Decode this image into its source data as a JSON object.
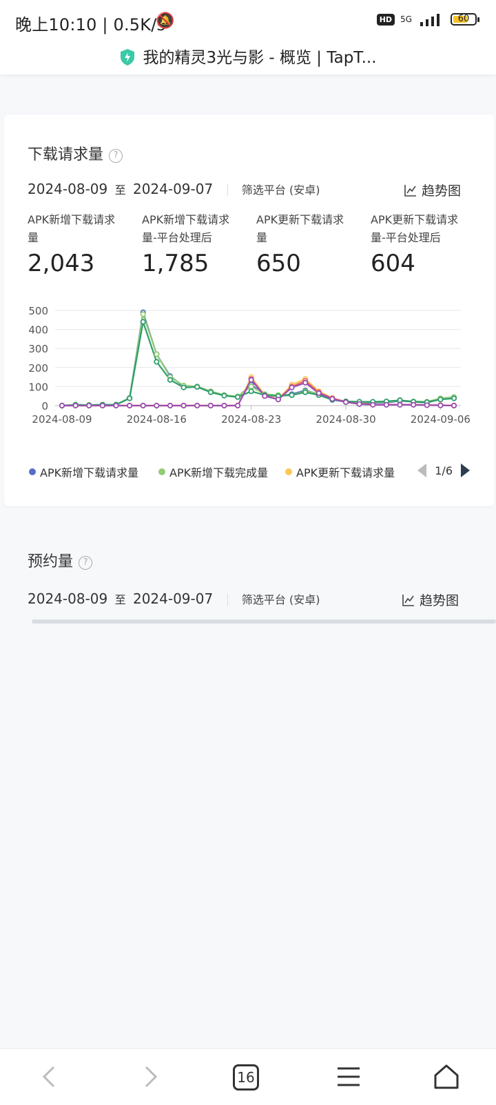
{
  "status_bar": {
    "time_speed": "晚上10:10 | 0.5K/s",
    "hd": "HD",
    "net": "5G",
    "battery": "60"
  },
  "page_title": "我的精灵3光与影 - 概览 | TapT...",
  "download_card": {
    "title": "下载请求量",
    "date_start": "2024-08-09",
    "date_to": "至",
    "date_end": "2024-09-07",
    "filter": "筛选平台 (安卓)",
    "trend_label": "趋势图",
    "metrics": [
      {
        "label_line1": "APK新增下载请求",
        "label_line2": "量",
        "value": "2,043"
      },
      {
        "label_line1": "APK新增下载请求",
        "label_line2": "量-平台处理后",
        "value": "1,785"
      },
      {
        "label_line1": "APK更新下载请求",
        "label_line2": "量",
        "value": "650"
      },
      {
        "label_line1": "APK更新下载请求",
        "label_line2": "量-平台处理后",
        "value": "604"
      }
    ],
    "legend": [
      {
        "name": "APK新增下载请求量",
        "color": "#5470c6"
      },
      {
        "name": "APK新增下载完成量",
        "color": "#91cc75"
      },
      {
        "name": "APK更新下载请求量",
        "color": "#fac858"
      }
    ],
    "pager": "1/6"
  },
  "chart_data": {
    "type": "line",
    "x": [
      "2024-08-09",
      "2024-08-10",
      "2024-08-11",
      "2024-08-12",
      "2024-08-13",
      "2024-08-14",
      "2024-08-15",
      "2024-08-16",
      "2024-08-17",
      "2024-08-18",
      "2024-08-19",
      "2024-08-20",
      "2024-08-21",
      "2024-08-22",
      "2024-08-23",
      "2024-08-24",
      "2024-08-25",
      "2024-08-26",
      "2024-08-27",
      "2024-08-28",
      "2024-08-29",
      "2024-08-30",
      "2024-08-31",
      "2024-09-01",
      "2024-09-02",
      "2024-09-03",
      "2024-09-04",
      "2024-09-05",
      "2024-09-06",
      "2024-09-07"
    ],
    "x_tick_labels": [
      "2024-08-09",
      "2024-08-16",
      "2024-08-23",
      "2024-08-30",
      "2024-09-06"
    ],
    "y_ticks": [
      0,
      100,
      200,
      300,
      400,
      500
    ],
    "ylim": [
      0,
      500
    ],
    "series": [
      {
        "name": "APK新增下载请求量",
        "color": "#5470c6",
        "values": [
          0,
          5,
          3,
          5,
          5,
          40,
          490,
          270,
          155,
          100,
          100,
          75,
          55,
          45,
          110,
          55,
          50,
          60,
          80,
          60,
          30,
          20,
          15,
          15,
          15,
          25,
          20,
          15,
          35,
          40
        ]
      },
      {
        "name": "APK新增下载完成量",
        "color": "#91cc75",
        "values": [
          0,
          5,
          3,
          5,
          5,
          40,
          480,
          270,
          150,
          105,
          100,
          75,
          55,
          48,
          100,
          60,
          55,
          55,
          75,
          65,
          35,
          22,
          18,
          18,
          18,
          28,
          22,
          20,
          38,
          45
        ]
      },
      {
        "name": "APK更新下载请求量",
        "color": "#fac858",
        "values": [
          0,
          0,
          0,
          0,
          0,
          0,
          0,
          0,
          0,
          0,
          0,
          0,
          0,
          0,
          150,
          55,
          35,
          110,
          140,
          75,
          40,
          20,
          10,
          5,
          5,
          5,
          5,
          3,
          2,
          0
        ]
      },
      {
        "color": "#ee6666",
        "values": [
          0,
          0,
          0,
          0,
          0,
          0,
          0,
          0,
          0,
          0,
          0,
          0,
          0,
          0,
          140,
          52,
          33,
          100,
          130,
          70,
          38,
          20,
          10,
          5,
          5,
          5,
          5,
          3,
          2,
          0
        ]
      },
      {
        "color": "#2e9d6a",
        "values": [
          0,
          3,
          2,
          4,
          4,
          38,
          440,
          230,
          135,
          95,
          98,
          70,
          52,
          45,
          75,
          55,
          50,
          55,
          70,
          55,
          30,
          22,
          20,
          20,
          22,
          28,
          20,
          18,
          32,
          38
        ]
      },
      {
        "color": "#9a4fb3",
        "values": [
          0,
          0,
          0,
          0,
          0,
          0,
          0,
          0,
          0,
          0,
          0,
          0,
          0,
          0,
          135,
          50,
          32,
          95,
          120,
          65,
          35,
          18,
          8,
          4,
          4,
          4,
          4,
          2,
          1,
          0
        ]
      }
    ]
  },
  "reservation_card": {
    "title": "预约量",
    "date_start": "2024-08-09",
    "date_to": "至",
    "date_end": "2024-09-07",
    "filter": "筛选平台 (安卓)",
    "trend_label": "趋势图"
  },
  "bottom_nav": {
    "tabs_count": "16"
  }
}
